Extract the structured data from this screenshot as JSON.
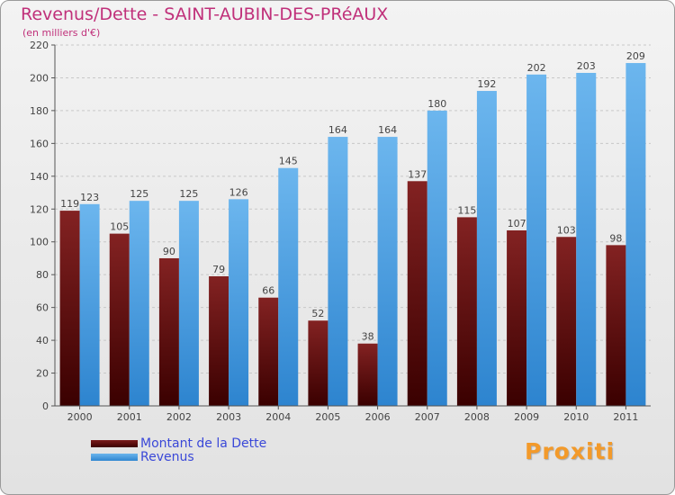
{
  "chart_data": {
    "type": "bar",
    "title": "Revenus/Dette - SAINT-AUBIN-DES-PRéAUX",
    "subtitle": "(en milliers d'€)",
    "xlabel": "",
    "ylabel": "",
    "ylim": [
      0,
      220
    ],
    "yticks": [
      0,
      20,
      40,
      60,
      80,
      100,
      120,
      140,
      160,
      180,
      200,
      220
    ],
    "grid": true,
    "legend_position": "bottom-left",
    "categories": [
      "2000",
      "2001",
      "2002",
      "2003",
      "2004",
      "2005",
      "2006",
      "2007",
      "2008",
      "2009",
      "2010",
      "2011"
    ],
    "series": [
      {
        "name": "Montant de la Dette",
        "color": "#7a1a1a",
        "values": [
          119,
          105,
          90,
          79,
          66,
          52,
          38,
          137,
          115,
          107,
          103,
          98
        ]
      },
      {
        "name": "Revenus",
        "color": "#4fa3e6",
        "values": [
          123,
          125,
          125,
          126,
          145,
          164,
          164,
          180,
          192,
          202,
          203,
          209
        ]
      }
    ]
  },
  "logo": {
    "text": "Proxiti"
  }
}
